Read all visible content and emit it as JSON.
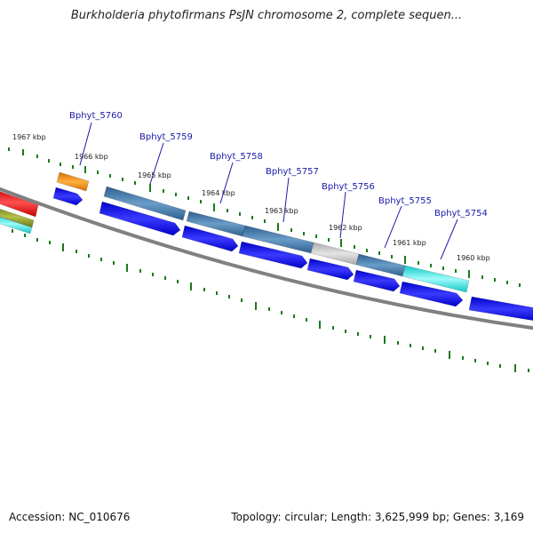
{
  "title": "Burkholderia phytofirmans PsJN chromosome 2, complete sequen...",
  "footer": {
    "accession": "Accession: NC_010676",
    "summary": "Topology: circular; Length: 3,625,999 bp; Genes: 3,169"
  },
  "kbp_labels": [
    "1967 kbp",
    "1966 kbp",
    "1965 kbp",
    "1964 kbp",
    "1963 kbp",
    "1962 kbp",
    "1961 kbp",
    "1960 kbp"
  ],
  "gene_labels": [
    "Bphyt_5760",
    "Bphyt_5759",
    "Bphyt_5758",
    "Bphyt_5757",
    "Bphyt_5756",
    "Bphyt_5755",
    "Bphyt_5754"
  ],
  "colors": {
    "backbone": "#808080",
    "tick": "#1a7a1a",
    "cds_forward": "#0a0af0",
    "feature_blue": "#4a7fb0",
    "feature_cyan": "#19e6e6",
    "feature_gray": "#bdbdbd",
    "feature_orange": "#f08c10",
    "feature_red": "#ee1111",
    "feature_olive": "#8a9a2a",
    "label_text": "#1a1aa8"
  }
}
